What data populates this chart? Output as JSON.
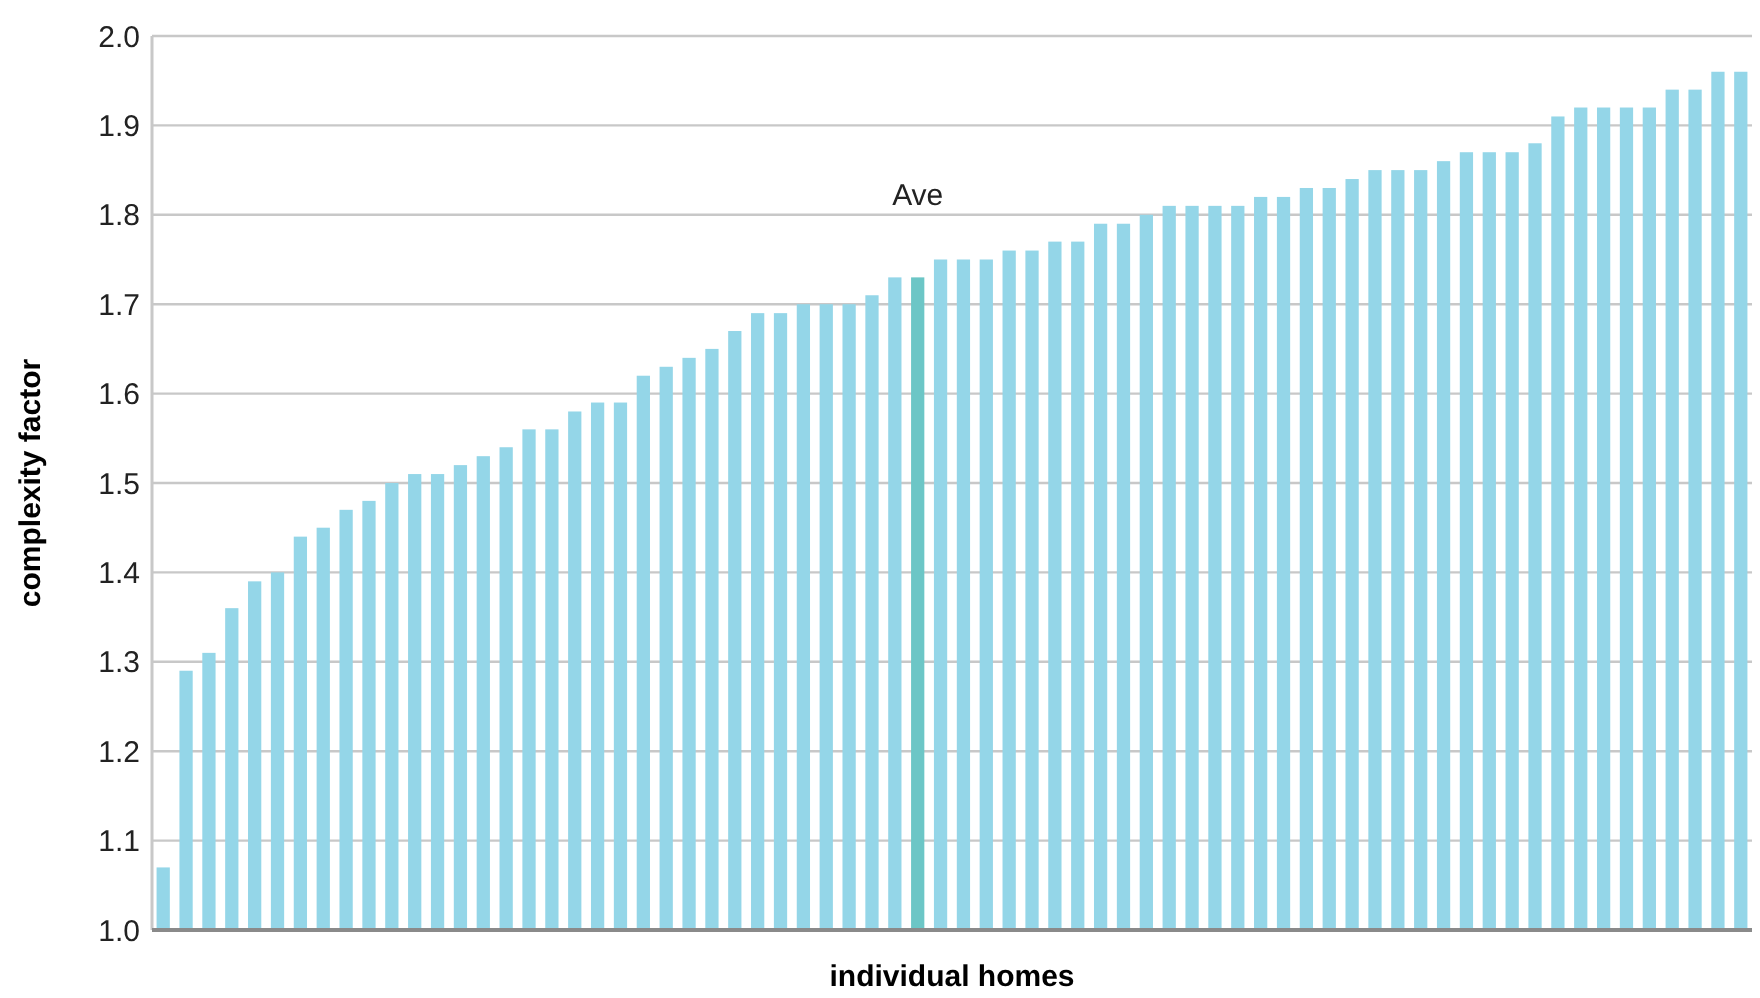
{
  "chart_data": {
    "type": "bar",
    "xlabel": "individual homes",
    "ylabel": "complexity factor",
    "categories": [
      null,
      null,
      null,
      null,
      null,
      null,
      null,
      null,
      null,
      null,
      null,
      null,
      null,
      null,
      null,
      null,
      null,
      null,
      null,
      null,
      null,
      null,
      null,
      null,
      null,
      null,
      null,
      null,
      null,
      null,
      null,
      null,
      null,
      null,
      null,
      null,
      null,
      null,
      null,
      null,
      null,
      null,
      null,
      null,
      null,
      null,
      null,
      null,
      null,
      null,
      null,
      null,
      null,
      null,
      null,
      null,
      null,
      null,
      null,
      null,
      null,
      null,
      null,
      null,
      null,
      null,
      null,
      null,
      null,
      null
    ],
    "values": [
      1.07,
      1.29,
      1.31,
      1.36,
      1.39,
      1.4,
      1.44,
      1.45,
      1.47,
      1.48,
      1.5,
      1.51,
      1.51,
      1.52,
      1.53,
      1.54,
      1.56,
      1.56,
      1.58,
      1.59,
      1.59,
      1.62,
      1.63,
      1.64,
      1.65,
      1.67,
      1.69,
      1.69,
      1.7,
      1.7,
      1.7,
      1.71,
      1.73,
      1.73,
      1.75,
      1.75,
      1.75,
      1.76,
      1.76,
      1.77,
      1.77,
      1.79,
      1.79,
      1.8,
      1.81,
      1.81,
      1.81,
      1.81,
      1.82,
      1.82,
      1.83,
      1.83,
      1.84,
      1.85,
      1.85,
      1.85,
      1.86,
      1.87,
      1.87,
      1.87,
      1.88,
      1.91,
      1.92,
      1.92,
      1.92,
      1.92,
      1.94,
      1.94,
      1.96,
      1.96
    ],
    "colors": [
      "#94d6e8",
      "#94d6e8",
      "#94d6e8",
      "#94d6e8",
      "#94d6e8",
      "#94d6e8",
      "#94d6e8",
      "#94d6e8",
      "#94d6e8",
      "#94d6e8",
      "#94d6e8",
      "#94d6e8",
      "#94d6e8",
      "#94d6e8",
      "#94d6e8",
      "#94d6e8",
      "#94d6e8",
      "#94d6e8",
      "#94d6e8",
      "#94d6e8",
      "#94d6e8",
      "#94d6e8",
      "#94d6e8",
      "#94d6e8",
      "#94d6e8",
      "#94d6e8",
      "#94d6e8",
      "#94d6e8",
      "#94d6e8",
      "#94d6e8",
      "#94d6e8",
      "#94d6e8",
      "#94d6e8",
      "#6cc6c6",
      "#94d6e8",
      "#94d6e8",
      "#94d6e8",
      "#94d6e8",
      "#94d6e8",
      "#94d6e8",
      "#94d6e8",
      "#94d6e8",
      "#94d6e8",
      "#94d6e8",
      "#94d6e8",
      "#94d6e8",
      "#94d6e8",
      "#94d6e8",
      "#94d6e8",
      "#94d6e8",
      "#94d6e8",
      "#94d6e8",
      "#94d6e8",
      "#94d6e8",
      "#94d6e8",
      "#94d6e8",
      "#94d6e8",
      "#94d6e8",
      "#94d6e8",
      "#94d6e8",
      "#94d6e8",
      "#94d6e8",
      "#94d6e8",
      "#94d6e8",
      "#94d6e8",
      "#94d6e8",
      "#94d6e8",
      "#94d6e8",
      "#94d6e8",
      "#94d6e8"
    ],
    "ylim": [
      1.0,
      2.0
    ],
    "yticks": [
      {
        "value": 1.0,
        "label": "1.0"
      },
      1.1,
      1.2,
      1.3,
      1.4,
      1.5,
      1.6,
      1.7,
      1.8,
      1.9,
      {
        "value": 2.0,
        "label": "2.0"
      }
    ],
    "grid": "y",
    "tick_labels": "y",
    "annotations": [
      "Ave"
    ]
  }
}
